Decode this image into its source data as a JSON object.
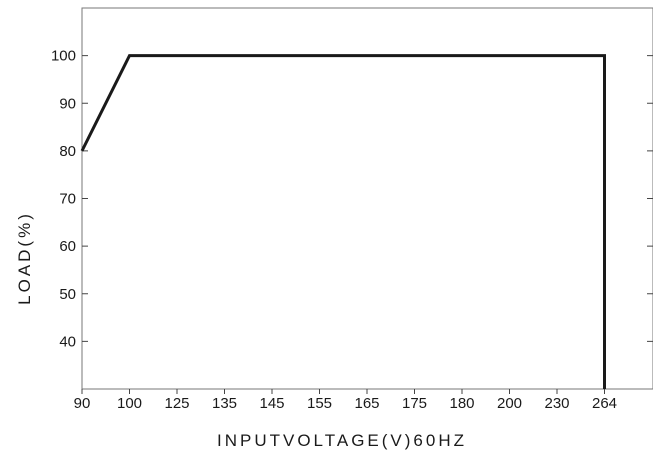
{
  "chart_data": {
    "type": "line",
    "title": "",
    "xlabel": "INPUTVOLTAGE(V)60HZ",
    "ylabel": "LOAD(%)",
    "x_categories": [
      "90",
      "100",
      "125",
      "135",
      "145",
      "155",
      "165",
      "175",
      "180",
      "200",
      "230",
      "264"
    ],
    "y_ticks": [
      "40",
      "50",
      "60",
      "70",
      "80",
      "90",
      "100"
    ],
    "ylim": [
      30,
      110
    ],
    "grid": false,
    "series": [
      {
        "points": [
          {
            "x": "90",
            "y": 80
          },
          {
            "x": "100",
            "y": 100
          },
          {
            "x": "264",
            "y": 100
          },
          {
            "x": "264",
            "y": 30
          }
        ]
      }
    ],
    "colors": {
      "line": "#1a1a1a",
      "axis": "#777777"
    }
  }
}
